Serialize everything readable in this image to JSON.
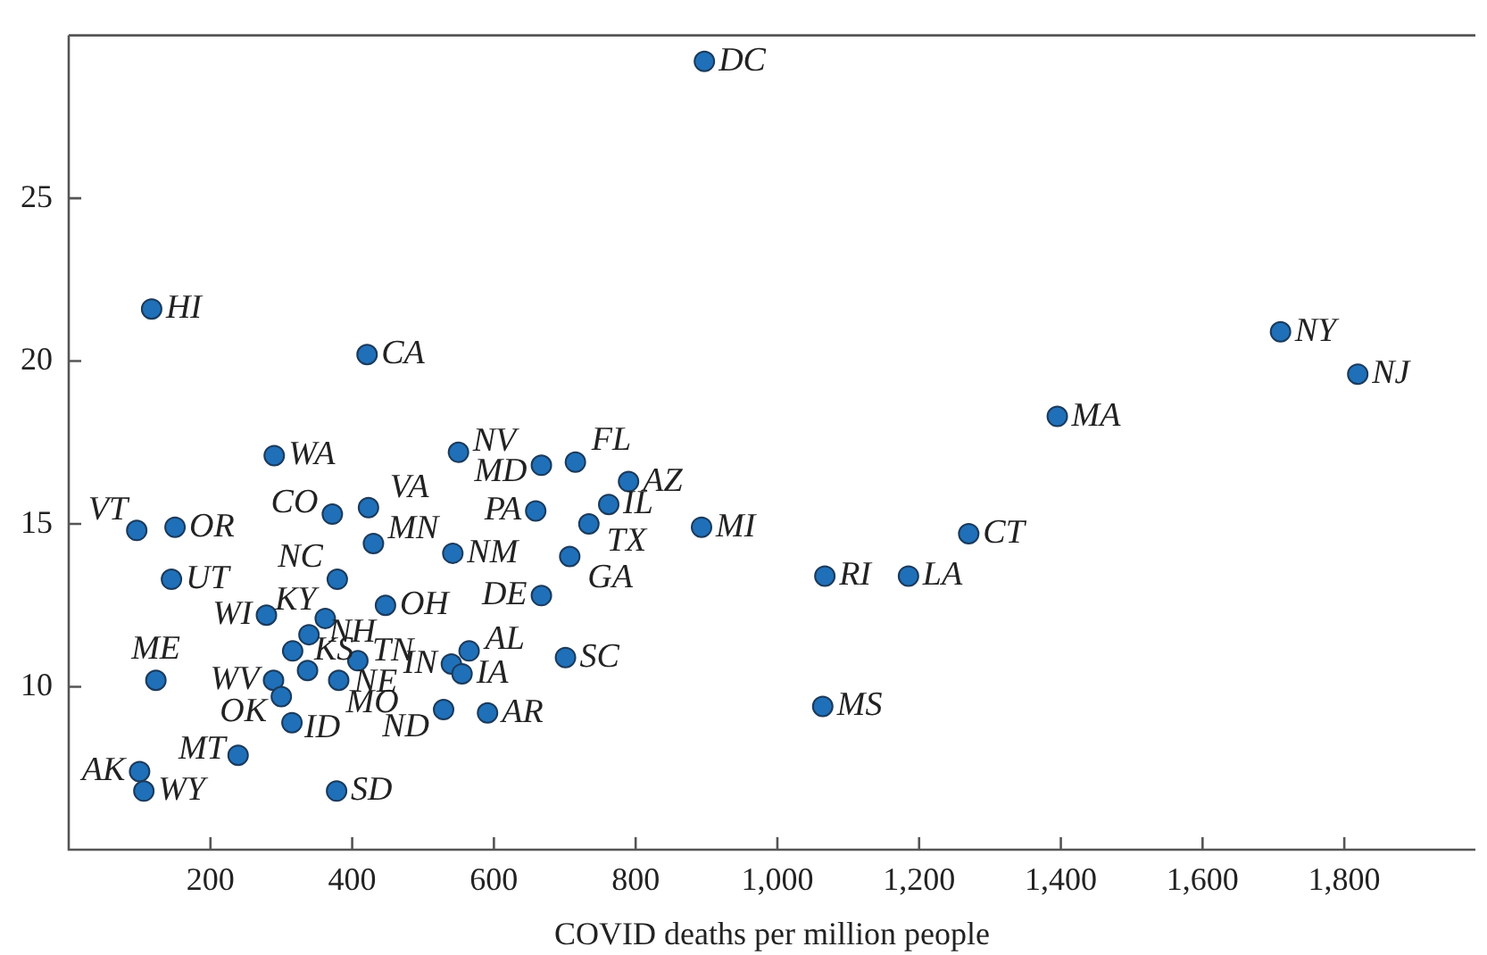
{
  "chart_data": {
    "type": "scatter",
    "xlabel": "COVID deaths per million people",
    "x": [
      117,
      421,
      290,
      550,
      667,
      96,
      150,
      372,
      423,
      430,
      659,
      542,
      145,
      379,
      667,
      279,
      362,
      447,
      339,
      316,
      408,
      565,
      540,
      555,
      337,
      381,
      289,
      300,
      315,
      529,
      591,
      123,
      239,
      100,
      106,
      378,
      715,
      790,
      762,
      734,
      893,
      707,
      701,
      1067,
      1185,
      1064,
      1270,
      1395,
      1710,
      1819,
      897
    ],
    "series": [
      {
        "color": "#1f70b8",
        "values": [
          21.6,
          20.2,
          17.1,
          17.2,
          16.8,
          14.8,
          14.9,
          15.3,
          15.5,
          14.4,
          15.4,
          14.1,
          13.3,
          13.3,
          12.8,
          12.2,
          12.1,
          12.5,
          11.6,
          11.1,
          10.8,
          11.1,
          10.7,
          10.4,
          10.5,
          10.2,
          10.2,
          9.7,
          8.9,
          9.3,
          9.2,
          10.2,
          7.9,
          7.4,
          6.8,
          6.8,
          16.9,
          16.3,
          15.6,
          15.0,
          14.9,
          14.0,
          10.9,
          13.4,
          13.4,
          9.4,
          14.7,
          18.3,
          20.9,
          19.6,
          29.2
        ]
      }
    ],
    "xlim": [
      0,
      1985
    ],
    "ylim": [
      5,
      30
    ],
    "xticks": [
      {
        "value": 200,
        "label": "200"
      },
      {
        "value": 400,
        "label": "400"
      },
      {
        "value": 600,
        "label": "600"
      },
      {
        "value": 800,
        "label": "800"
      },
      {
        "value": 1000,
        "label": "1,000"
      },
      {
        "value": 1200,
        "label": "1,200"
      },
      {
        "value": 1400,
        "label": "1,400"
      },
      {
        "value": 1600,
        "label": "1,600"
      },
      {
        "value": 1800,
        "label": "1,800"
      }
    ],
    "yticks": [
      10,
      15,
      20,
      25
    ],
    "grid": false,
    "marker": "circle",
    "annotations": [
      {
        "text": "HI",
        "x": 117,
        "y": 21.6
      },
      {
        "text": "CA",
        "x": 421,
        "y": 20.2
      },
      {
        "text": "WA",
        "x": 290,
        "y": 17.1
      },
      {
        "text": "NV",
        "x": 550,
        "y": 17.2
      },
      {
        "text": "MD",
        "x": 667,
        "y": 16.8
      },
      {
        "text": "VT",
        "x": 96,
        "y": 14.8
      },
      {
        "text": "OR",
        "x": 150,
        "y": 14.9
      },
      {
        "text": "CO",
        "x": 372,
        "y": 15.3
      },
      {
        "text": "VA",
        "x": 423,
        "y": 15.5
      },
      {
        "text": "MN",
        "x": 430,
        "y": 14.4
      },
      {
        "text": "PA",
        "x": 659,
        "y": 15.4
      },
      {
        "text": "NM",
        "x": 542,
        "y": 14.1
      },
      {
        "text": "UT",
        "x": 145,
        "y": 13.3
      },
      {
        "text": "NC",
        "x": 379,
        "y": 13.3
      },
      {
        "text": "DE",
        "x": 667,
        "y": 12.8
      },
      {
        "text": "WI",
        "x": 279,
        "y": 12.2
      },
      {
        "text": "KY",
        "x": 362,
        "y": 12.1
      },
      {
        "text": "OH",
        "x": 447,
        "y": 12.5
      },
      {
        "text": "NH",
        "x": 339,
        "y": 11.6
      },
      {
        "text": "KS",
        "x": 316,
        "y": 11.1
      },
      {
        "text": "TN",
        "x": 408,
        "y": 10.8
      },
      {
        "text": "AL",
        "x": 565,
        "y": 11.1
      },
      {
        "text": "IN",
        "x": 540,
        "y": 10.7
      },
      {
        "text": "IA",
        "x": 555,
        "y": 10.4
      },
      {
        "text": "NE",
        "x": 337,
        "y": 10.5
      },
      {
        "text": "MO",
        "x": 381,
        "y": 10.2
      },
      {
        "text": "WV",
        "x": 289,
        "y": 10.2
      },
      {
        "text": "OK",
        "x": 300,
        "y": 9.7
      },
      {
        "text": "ID",
        "x": 315,
        "y": 8.9
      },
      {
        "text": "ND",
        "x": 529,
        "y": 9.3
      },
      {
        "text": "AR",
        "x": 591,
        "y": 9.2
      },
      {
        "text": "ME",
        "x": 123,
        "y": 10.2
      },
      {
        "text": "MT",
        "x": 239,
        "y": 7.9
      },
      {
        "text": "AK",
        "x": 100,
        "y": 7.4
      },
      {
        "text": "WY",
        "x": 106,
        "y": 6.8
      },
      {
        "text": "SD",
        "x": 378,
        "y": 6.8
      },
      {
        "text": "FL",
        "x": 715,
        "y": 16.9
      },
      {
        "text": "AZ",
        "x": 790,
        "y": 16.3
      },
      {
        "text": "IL",
        "x": 762,
        "y": 15.6
      },
      {
        "text": "TX",
        "x": 734,
        "y": 15.0
      },
      {
        "text": "MI",
        "x": 893,
        "y": 14.9
      },
      {
        "text": "GA",
        "x": 707,
        "y": 14.0
      },
      {
        "text": "SC",
        "x": 701,
        "y": 10.9
      },
      {
        "text": "RI",
        "x": 1067,
        "y": 13.4
      },
      {
        "text": "LA",
        "x": 1185,
        "y": 13.4
      },
      {
        "text": "MS",
        "x": 1064,
        "y": 9.4
      },
      {
        "text": "CT",
        "x": 1270,
        "y": 14.7
      },
      {
        "text": "MA",
        "x": 1395,
        "y": 18.3
      },
      {
        "text": "NY",
        "x": 1710,
        "y": 20.9
      },
      {
        "text": "NJ",
        "x": 1819,
        "y": 19.6
      },
      {
        "text": "DC",
        "x": 897,
        "y": 29.2
      }
    ]
  }
}
